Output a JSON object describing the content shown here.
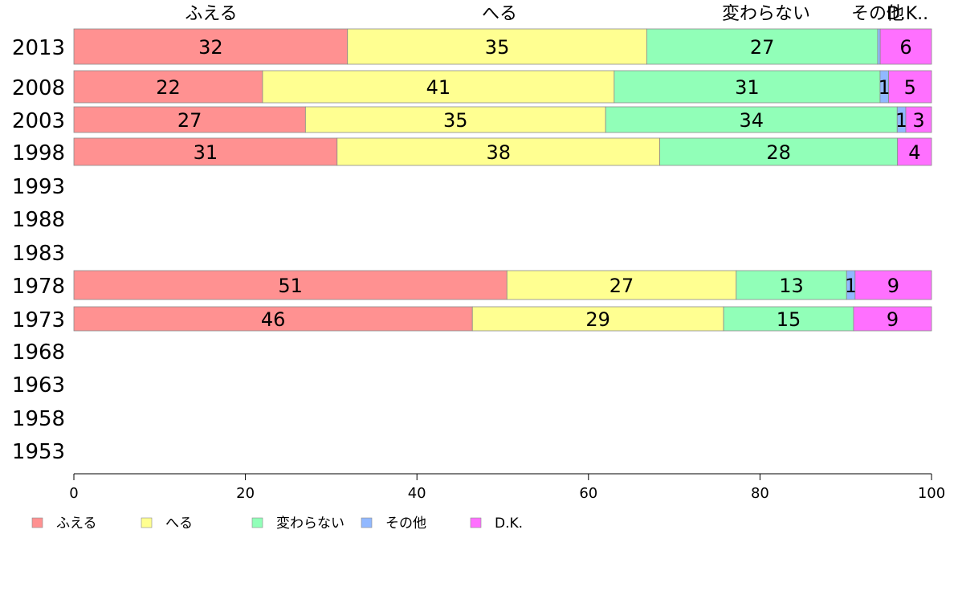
{
  "chart_data": {
    "type": "bar",
    "orientation": "horizontal",
    "stacked": true,
    "categories": [
      "2013",
      "2008",
      "2003",
      "1998",
      "1993",
      "1988",
      "1983",
      "1978",
      "1973",
      "1968",
      "1963",
      "1958",
      "1953"
    ],
    "series": [
      {
        "name": "ふえる",
        "color": "#FF9191",
        "values": [
          32,
          22,
          27,
          31,
          null,
          null,
          null,
          51,
          46,
          null,
          null,
          null,
          null
        ]
      },
      {
        "name": "へる",
        "color": "#FFFF91",
        "values": [
          35,
          41,
          35,
          38,
          null,
          null,
          null,
          27,
          29,
          null,
          null,
          null,
          null
        ]
      },
      {
        "name": "変わらない",
        "color": "#91FFB8",
        "values": [
          27,
          31,
          34,
          28,
          null,
          null,
          null,
          13,
          15,
          null,
          null,
          null,
          null
        ]
      },
      {
        "name": "その他",
        "color": "#91B8FF",
        "values": [
          0.3,
          1,
          1,
          0,
          null,
          null,
          null,
          1,
          0,
          null,
          null,
          null,
          null
        ]
      },
      {
        "name": "D.K.",
        "color": "#FF70FF",
        "values": [
          6,
          5,
          3,
          4,
          null,
          null,
          null,
          9,
          9,
          null,
          null,
          null,
          null
        ]
      }
    ],
    "bar_labels": [
      [
        "32",
        "35",
        "27",
        "",
        "6"
      ],
      [
        "22",
        "41",
        "31",
        "1",
        "5"
      ],
      [
        "27",
        "35",
        "34",
        "1",
        "3"
      ],
      [
        "31",
        "38",
        "28",
        "",
        "4"
      ],
      null,
      null,
      null,
      [
        "51",
        "27",
        "13",
        "1",
        "9"
      ],
      [
        "46",
        "29",
        "15",
        "",
        "9"
      ],
      null,
      null,
      null,
      null
    ],
    "top_labels": [
      "ふえる",
      "へる",
      "変わらない",
      "その他",
      "D.K.."
    ],
    "x_ticks": [
      0,
      20,
      40,
      60,
      80,
      100
    ],
    "xlim": [
      0,
      100
    ],
    "legend_position": "bottom-left",
    "grid": false
  }
}
